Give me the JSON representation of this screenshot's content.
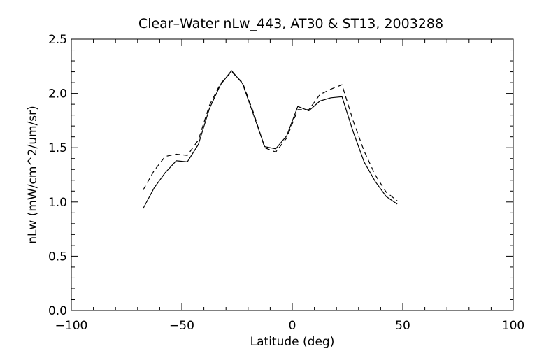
{
  "chart_data": {
    "type": "line",
    "title": "Clear–Water nLw_443, AT30 & ST13, 2003288",
    "xlabel": "Latitude (deg)",
    "ylabel": "nLw (mW/cm^2/um/sr)",
    "xlim": [
      -100,
      100
    ],
    "ylim": [
      0.0,
      2.5
    ],
    "x_ticks": [
      -100,
      -50,
      0,
      50,
      100
    ],
    "x_tick_labels": [
      "−100",
      "−50",
      "0",
      "50",
      "100"
    ],
    "y_ticks": [
      0.0,
      0.5,
      1.0,
      1.5,
      2.0,
      2.5
    ],
    "y_tick_labels": [
      "0.0",
      "0.5",
      "1.0",
      "1.5",
      "2.0",
      "2.5"
    ],
    "grid": false,
    "legend": "none",
    "series": [
      {
        "style": "solid",
        "color": "#000000",
        "x": [
          -67.5,
          -62.5,
          -57.5,
          -52.5,
          -47.5,
          -42.5,
          -37.5,
          -32.5,
          -27.5,
          -22.5,
          -17.5,
          -12.5,
          -7.5,
          -2.5,
          2.5,
          7.5,
          12.5,
          17.5,
          22.5,
          27.5,
          32.5,
          37.5,
          42.5,
          47.5
        ],
        "values": [
          0.94,
          1.13,
          1.27,
          1.38,
          1.37,
          1.53,
          1.86,
          2.08,
          2.21,
          2.09,
          1.8,
          1.51,
          1.49,
          1.61,
          1.88,
          1.84,
          1.93,
          1.96,
          1.97,
          1.65,
          1.37,
          1.19,
          1.05,
          0.98
        ]
      },
      {
        "style": "dashed",
        "color": "#000000",
        "x": [
          -67.5,
          -62.5,
          -57.5,
          -52.5,
          -47.5,
          -42.5,
          -37.5,
          -32.5,
          -27.5,
          -22.5,
          -17.5,
          -12.5,
          -7.5,
          -2.5,
          2.5,
          7.5,
          12.5,
          17.5,
          22.5,
          27.5,
          32.5,
          37.5,
          42.5,
          47.5
        ],
        "values": [
          1.11,
          1.29,
          1.42,
          1.44,
          1.43,
          1.57,
          1.89,
          2.09,
          2.2,
          2.1,
          1.82,
          1.5,
          1.46,
          1.59,
          1.85,
          1.85,
          1.99,
          2.04,
          2.08,
          1.75,
          1.47,
          1.25,
          1.09,
          1.01
        ]
      }
    ]
  }
}
